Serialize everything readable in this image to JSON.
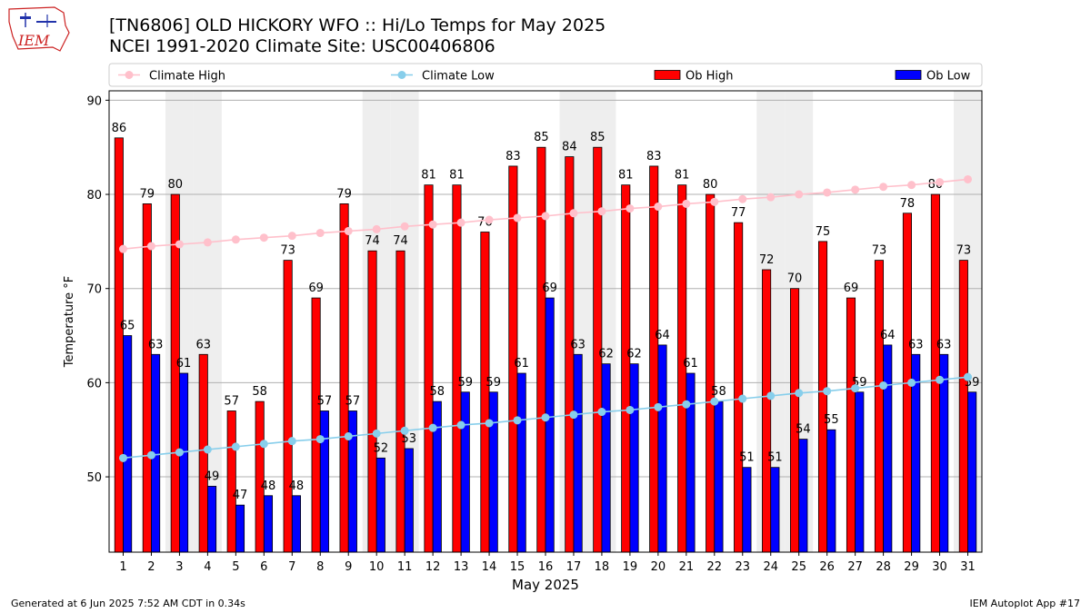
{
  "header": {
    "title_line1": "[TN6806] OLD HICKORY WFO :: Hi/Lo Temps for May 2025",
    "title_line2": "NCEI 1991-2020 Climate Site: USC00406806",
    "logo_text": "IEM"
  },
  "footer": {
    "generated": "Generated at 6 Jun 2025 7:52 AM CDT in 0.34s",
    "app": "IEM Autoplot App #17"
  },
  "chart_data": {
    "type": "bar",
    "xlabel": "May 2025",
    "ylabel": "Temperature °F",
    "ylim": [
      42,
      91
    ],
    "yticks": [
      50,
      60,
      70,
      80,
      90
    ],
    "grid": "horizontal",
    "weekend_shading_days": [
      3,
      4,
      10,
      11,
      17,
      18,
      24,
      25,
      31
    ],
    "legend_placement": "top, above plot",
    "categories": [
      "1",
      "2",
      "3",
      "4",
      "5",
      "6",
      "7",
      "8",
      "9",
      "10",
      "11",
      "12",
      "13",
      "14",
      "15",
      "16",
      "17",
      "18",
      "19",
      "20",
      "21",
      "22",
      "23",
      "24",
      "25",
      "26",
      "27",
      "28",
      "29",
      "30",
      "31"
    ],
    "series": [
      {
        "name": "Climate High",
        "kind": "line",
        "color": "#ffc0cb",
        "values": [
          74.2,
          74.5,
          74.7,
          74.9,
          75.2,
          75.4,
          75.6,
          75.9,
          76.1,
          76.3,
          76.6,
          76.8,
          77.0,
          77.3,
          77.5,
          77.7,
          78.0,
          78.2,
          78.5,
          78.7,
          79.0,
          79.2,
          79.5,
          79.7,
          80.0,
          80.2,
          80.5,
          80.8,
          81.0,
          81.3,
          81.6
        ]
      },
      {
        "name": "Climate Low",
        "kind": "line",
        "color": "#87ceeb",
        "values": [
          52.0,
          52.3,
          52.6,
          52.9,
          53.2,
          53.5,
          53.8,
          54.0,
          54.3,
          54.6,
          54.9,
          55.2,
          55.5,
          55.7,
          56.0,
          56.3,
          56.6,
          56.9,
          57.1,
          57.4,
          57.7,
          58.0,
          58.3,
          58.6,
          58.9,
          59.1,
          59.4,
          59.7,
          60.0,
          60.3,
          60.6
        ]
      },
      {
        "name": "Ob High",
        "kind": "bar",
        "color": "#ff0000",
        "values": [
          86,
          79,
          80,
          63,
          57,
          58,
          73,
          69,
          79,
          74,
          74,
          81,
          81,
          76,
          83,
          85,
          84,
          85,
          81,
          83,
          81,
          80,
          77,
          72,
          70,
          75,
          69,
          73,
          78,
          80,
          73
        ]
      },
      {
        "name": "Ob Low",
        "kind": "bar",
        "color": "#0000ff",
        "values": [
          65,
          63,
          61,
          49,
          47,
          48,
          48,
          57,
          57,
          52,
          53,
          58,
          59,
          59,
          61,
          69,
          63,
          62,
          62,
          64,
          61,
          58,
          51,
          51,
          54,
          55,
          59,
          64,
          63,
          63,
          59
        ]
      }
    ]
  }
}
